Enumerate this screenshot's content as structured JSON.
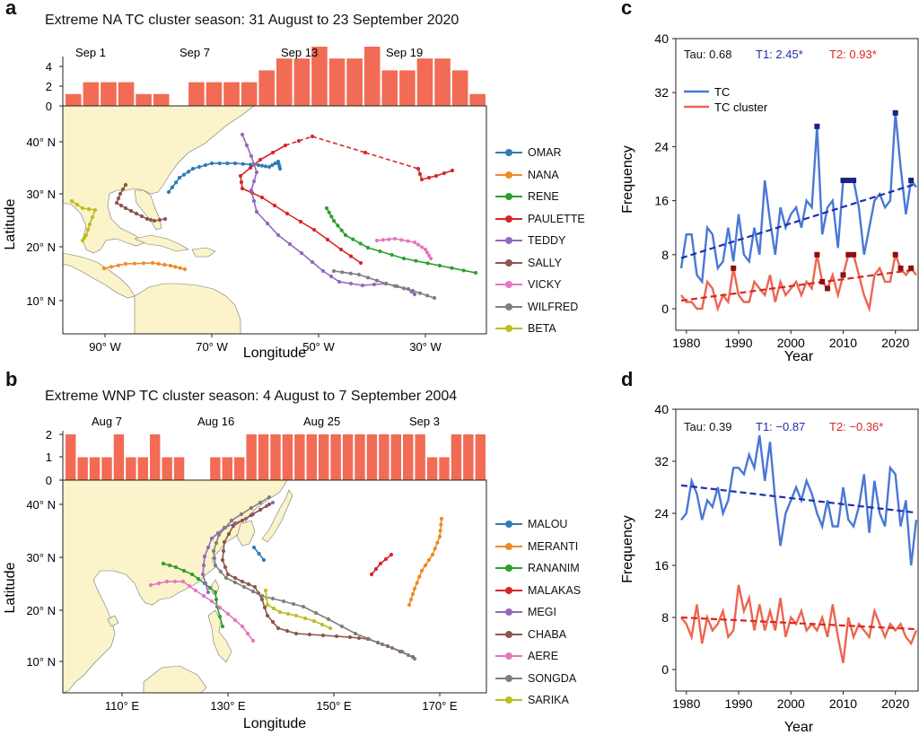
{
  "panels": {
    "a": {
      "label": "a",
      "title": "Extreme NA TC cluster season: 31 August to 23 September 2020"
    },
    "b": {
      "label": "b",
      "title": "Extreme WNP TC cluster season: 4 August to 7 September 2004"
    },
    "c": {
      "label": "c"
    },
    "d": {
      "label": "d"
    }
  },
  "map_a": {
    "bar_date_labels": [
      "Sep 1",
      "Sep 7",
      "Sep 13",
      "Sep 19"
    ],
    "bar_yticks": [
      "0",
      "2",
      "4"
    ],
    "lat_ticks": [
      "10° N",
      "20° N",
      "30° N",
      "40° N"
    ],
    "lon_ticks": [
      "90° W",
      "70° W",
      "50° W",
      "30° W"
    ],
    "xlabel": "Longitude",
    "ylabel": "Latitude",
    "legend": [
      {
        "name": "OMAR",
        "color": "#2e7bb5"
      },
      {
        "name": "NANA",
        "color": "#f08a24"
      },
      {
        "name": "RENE",
        "color": "#2ca02c"
      },
      {
        "name": "PAULETTE",
        "color": "#d62728"
      },
      {
        "name": "TEDDY",
        "color": "#9467bd"
      },
      {
        "name": "SALLY",
        "color": "#8c564b"
      },
      {
        "name": "VICKY",
        "color": "#e377c2"
      },
      {
        "name": "WILFRED",
        "color": "#7f7f7f"
      },
      {
        "name": "BETA",
        "color": "#bcbd22"
      }
    ]
  },
  "map_b": {
    "bar_date_labels": [
      "Aug 7",
      "Aug 16",
      "Aug 25",
      "Sep 3"
    ],
    "bar_yticks": [
      "0",
      "1",
      "2"
    ],
    "lat_ticks": [
      "10° N",
      "20° N",
      "30° N",
      "40° N"
    ],
    "lon_ticks": [
      "110° E",
      "130° E",
      "150° E",
      "170° E"
    ],
    "xlabel": "Longitude",
    "ylabel": "Latitude",
    "legend": [
      {
        "name": "MALOU",
        "color": "#2e7bb5"
      },
      {
        "name": "MERANTI",
        "color": "#f08a24"
      },
      {
        "name": "RANANIM",
        "color": "#2ca02c"
      },
      {
        "name": "MALAKAS",
        "color": "#d62728"
      },
      {
        "name": "MEGI",
        "color": "#9467bd"
      },
      {
        "name": "CHABA",
        "color": "#8c564b"
      },
      {
        "name": "AERE",
        "color": "#e377c2"
      },
      {
        "name": "SONGDA",
        "color": "#7f7f7f"
      },
      {
        "name": "SARIKA",
        "color": "#bcbd22"
      }
    ]
  },
  "stats_c": {
    "tau": "Tau: 0.68",
    "t1": "T1: 2.45*",
    "t2": "T2: 0.93*"
  },
  "stats_d": {
    "tau": "Tau: 0.39",
    "t1": "T1: −0.87",
    "t2": "T2: −0.36*"
  },
  "colors": {
    "bar": "#f26b55",
    "tc": "#4a78d6",
    "cluster": "#ec6650",
    "tc_trend": "#1f2fa8",
    "cluster_trend": "#d8271e",
    "marker": "#1a237e",
    "cluster_marker": "#8b1010",
    "land": "#fbf3c9"
  },
  "chart_data": [
    {
      "panel": "a",
      "type": "bar",
      "title": "Extreme NA TC cluster season: 31 August to 23 September 2020",
      "categories": [
        "Aug 31",
        "Sep 1",
        "Sep 2",
        "Sep 3",
        "Sep 4",
        "Sep 5",
        "Sep 6",
        "Sep 7",
        "Sep 8",
        "Sep 9",
        "Sep 10",
        "Sep 11",
        "Sep 12",
        "Sep 13",
        "Sep 14",
        "Sep 15",
        "Sep 16",
        "Sep 17",
        "Sep 18",
        "Sep 19",
        "Sep 20",
        "Sep 21",
        "Sep 22",
        "Sep 23"
      ],
      "values": [
        1,
        2,
        2,
        2,
        1,
        1,
        0,
        2,
        2,
        2,
        2,
        3,
        4,
        4,
        5,
        4,
        4,
        5,
        3,
        3,
        4,
        4,
        3,
        1
      ],
      "ylim": [
        0,
        5
      ]
    },
    {
      "panel": "b",
      "type": "bar",
      "title": "Extreme WNP TC cluster season: 4 August to 7 September 2004",
      "categories": [
        "Aug 4",
        "Aug 5",
        "Aug 6",
        "Aug 7",
        "Aug 8",
        "Aug 9",
        "Aug 10",
        "Aug 11",
        "Aug 12",
        "Aug 13",
        "Aug 14",
        "Aug 15",
        "Aug 16",
        "Aug 17",
        "Aug 18",
        "Aug 19",
        "Aug 20",
        "Aug 21",
        "Aug 22",
        "Aug 23",
        "Aug 24",
        "Aug 25",
        "Aug 26",
        "Aug 27",
        "Aug 28",
        "Aug 29",
        "Aug 30",
        "Aug 31",
        "Sep 1",
        "Sep 2",
        "Sep 3",
        "Sep 4",
        "Sep 5",
        "Sep 6",
        "Sep 7"
      ],
      "values": [
        2,
        1,
        1,
        1,
        2,
        1,
        1,
        2,
        1,
        1,
        0,
        0,
        1,
        1,
        1,
        2,
        2,
        2,
        2,
        2,
        2,
        2,
        2,
        2,
        2,
        2,
        2,
        2,
        2,
        2,
        1,
        1,
        2,
        2,
        2
      ],
      "ylim": [
        0,
        2
      ]
    },
    {
      "panel": "c",
      "type": "line",
      "xlabel": "Year",
      "ylabel": "Frequency",
      "xlim": [
        1979,
        2024
      ],
      "ylim": [
        0,
        40
      ],
      "xticks": [
        1980,
        1990,
        2000,
        2010,
        2020
      ],
      "yticks": [
        0,
        8,
        16,
        24,
        32,
        40
      ],
      "x": [
        1979,
        1980,
        1981,
        1982,
        1983,
        1984,
        1985,
        1986,
        1987,
        1988,
        1989,
        1990,
        1991,
        1992,
        1993,
        1994,
        1995,
        1996,
        1997,
        1998,
        1999,
        2000,
        2001,
        2002,
        2003,
        2004,
        2005,
        2006,
        2007,
        2008,
        2009,
        2010,
        2011,
        2012,
        2013,
        2014,
        2015,
        2016,
        2017,
        2018,
        2019,
        2020,
        2021,
        2022,
        2023,
        2024
      ],
      "series": [
        {
          "name": "TC",
          "values": [
            6,
            11,
            11,
            5,
            4,
            12,
            11,
            6,
            7,
            12,
            7,
            14,
            8,
            7,
            12,
            8,
            19,
            13,
            8,
            15,
            12,
            14,
            15,
            12,
            16,
            15,
            27,
            11,
            15,
            16,
            9,
            19,
            19,
            19,
            15,
            8,
            12,
            16,
            17,
            15,
            16,
            29,
            21,
            14,
            19,
            18
          ]
        },
        {
          "name": "TC cluster",
          "values": [
            2,
            1,
            1,
            0,
            0,
            4,
            3,
            0,
            2,
            1,
            6,
            2,
            1,
            1,
            4,
            3,
            2,
            5,
            1,
            4,
            2,
            3,
            4,
            2,
            4,
            3,
            8,
            4,
            3,
            5,
            2,
            5,
            8,
            8,
            5,
            2,
            0,
            5,
            6,
            4,
            4,
            8,
            6,
            5,
            6,
            5
          ]
        }
      ],
      "trend_lines": [
        {
          "series": "TC",
          "start": [
            1979,
            7.5
          ],
          "end": [
            2024,
            18.5
          ]
        },
        {
          "series": "TC cluster",
          "start": [
            1979,
            1.2
          ],
          "end": [
            2024,
            5.8
          ]
        }
      ],
      "highlight_years": {
        "TC": [
          2005,
          2010,
          2011,
          2012,
          2020,
          2023
        ],
        "TC cluster": [
          1989,
          2005,
          2006,
          2007,
          2010,
          2011,
          2012,
          2020,
          2021,
          2023
        ]
      }
    },
    {
      "panel": "d",
      "type": "line",
      "xlabel": "Year",
      "ylabel": "Frequency",
      "xlim": [
        1979,
        2024
      ],
      "ylim": [
        0,
        40
      ],
      "xticks": [
        1980,
        1990,
        2000,
        2010,
        2020
      ],
      "yticks": [
        0,
        8,
        16,
        24,
        32,
        40
      ],
      "x": [
        1979,
        1980,
        1981,
        1982,
        1983,
        1984,
        1985,
        1986,
        1987,
        1988,
        1989,
        1990,
        1991,
        1992,
        1993,
        1994,
        1995,
        1996,
        1997,
        1998,
        1999,
        2000,
        2001,
        2002,
        2003,
        2004,
        2005,
        2006,
        2007,
        2008,
        2009,
        2010,
        2011,
        2012,
        2013,
        2014,
        2015,
        2016,
        2017,
        2018,
        2019,
        2020,
        2021,
        2022,
        2023,
        2024
      ],
      "series": [
        {
          "name": "TC",
          "values": [
            23,
            24,
            29,
            27,
            23,
            26,
            25,
            28,
            24,
            26,
            31,
            31,
            30,
            33,
            31,
            36,
            29,
            35,
            26,
            19,
            24,
            26,
            28,
            26,
            29,
            27,
            24,
            22,
            26,
            22,
            22,
            28,
            23,
            22,
            25,
            30,
            21,
            29,
            24,
            22,
            31,
            30,
            22,
            26,
            16,
            23
          ]
        },
        {
          "name": "TC cluster",
          "values": [
            8,
            7,
            5,
            10,
            4,
            8,
            6,
            7,
            9,
            5,
            6,
            13,
            9,
            11,
            6,
            10,
            6,
            9,
            6,
            11,
            5,
            8,
            7,
            9,
            6,
            7,
            6,
            8,
            5,
            10,
            5,
            1,
            8,
            5,
            7,
            6,
            5,
            9,
            7,
            5,
            7,
            6,
            7,
            5,
            4,
            6
          ]
        }
      ],
      "trend_lines": [
        {
          "series": "TC",
          "start": [
            1979,
            28.3
          ],
          "end": [
            2024,
            24.1
          ]
        },
        {
          "series": "TC cluster",
          "start": [
            1979,
            8
          ],
          "end": [
            2024,
            6.2
          ]
        }
      ]
    }
  ]
}
